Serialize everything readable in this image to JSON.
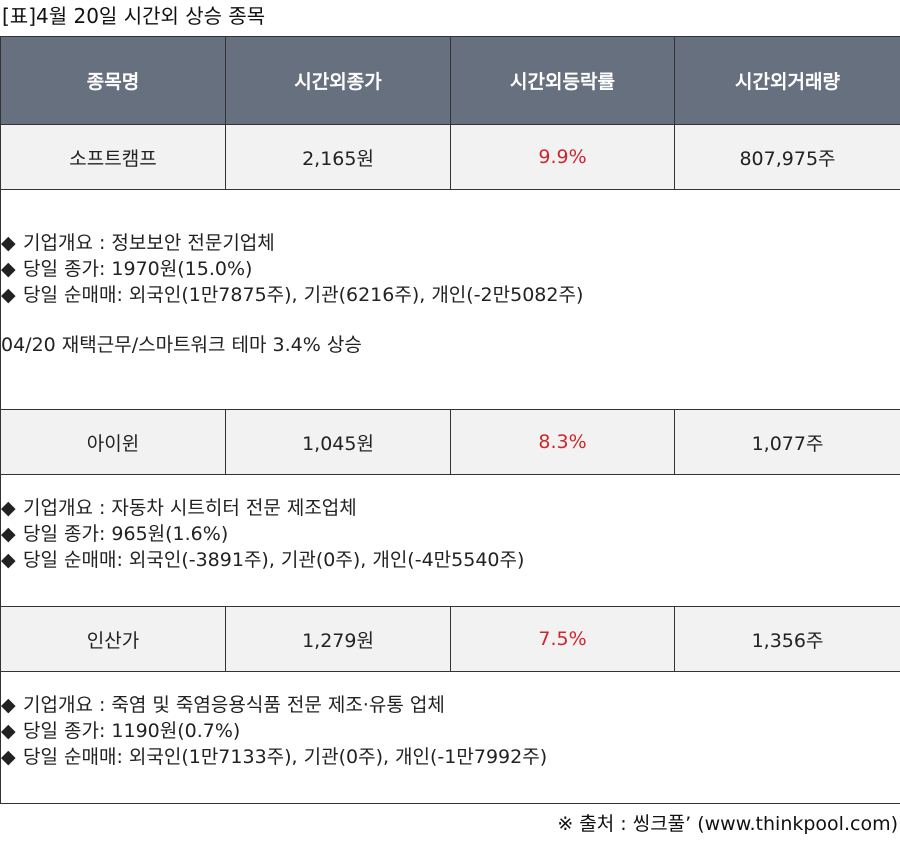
{
  "caption": "[표]4월 20일 시간외 상승 종목",
  "headers": [
    "종목명",
    "시간외종가",
    "시간외등락률",
    "시간외거래량"
  ],
  "bullet_icon": "◆",
  "stocks": [
    {
      "name": "소프트캠프",
      "close": "2,165원",
      "rate": "9.9%",
      "volume": "807,975주",
      "overview": "기업개요 : 정보보안 전문기업체",
      "day_close": "당일 종가: 1970원(15.0%)",
      "net_trade": "당일 순매매: 외국인(1만7875주), 기관(6216주), 개인(-2만5082주)",
      "note": "04/20 재택근무/스마트워크 테마 3.4% 상승"
    },
    {
      "name": "아이윈",
      "close": "1,045원",
      "rate": "8.3%",
      "volume": "1,077주",
      "overview": "기업개요 : 자동차 시트히터 전문 제조업체",
      "day_close": "당일 종가: 965원(1.6%)",
      "net_trade": "당일 순매매: 외국인(-3891주), 기관(0주), 개인(-4만5540주)"
    },
    {
      "name": "인산가",
      "close": "1,279원",
      "rate": "7.5%",
      "volume": "1,356주",
      "overview": "기업개요 : 죽염 및 죽염응용식품 전문 제조·유통 업체",
      "day_close": "당일 종가: 1190원(0.7%)",
      "net_trade": "당일 순매매: 외국인(1만7133주), 기관(0주), 개인(-1만7992주)"
    }
  ],
  "rate_color": "#d0262a",
  "header_color": "#66707f",
  "source": "※ 출처 : 씽크풀’ (www.thinkpool.com)"
}
